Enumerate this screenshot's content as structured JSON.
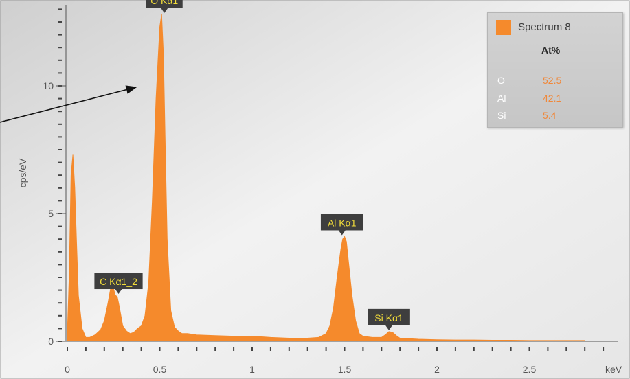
{
  "chart_data": {
    "type": "area",
    "xlabel": "keV",
    "ylabel": "cps/eV",
    "xlim": [
      0,
      3.0
    ],
    "ylim": [
      0,
      13.2
    ],
    "x_ticks": [
      0,
      0.5,
      1,
      1.5,
      2,
      2.5
    ],
    "x_tick_labels": [
      "0",
      "0.5",
      "1",
      "1.5",
      "2",
      "2.5"
    ],
    "y_ticks": [
      0,
      5,
      10
    ],
    "y_tick_labels": [
      "0",
      "5",
      "10"
    ],
    "grid": false,
    "series": [
      {
        "name": "Spectrum 8",
        "color": "#f58a2c",
        "x": [
          0.0,
          0.01,
          0.02,
          0.03,
          0.04,
          0.05,
          0.06,
          0.08,
          0.1,
          0.12,
          0.15,
          0.18,
          0.2,
          0.22,
          0.24,
          0.26,
          0.27,
          0.28,
          0.3,
          0.32,
          0.34,
          0.36,
          0.38,
          0.4,
          0.42,
          0.44,
          0.46,
          0.48,
          0.5,
          0.51,
          0.52,
          0.53,
          0.54,
          0.56,
          0.58,
          0.6,
          0.62,
          0.65,
          0.7,
          0.8,
          0.9,
          1.0,
          1.1,
          1.2,
          1.3,
          1.36,
          1.4,
          1.42,
          1.44,
          1.46,
          1.48,
          1.49,
          1.5,
          1.51,
          1.52,
          1.54,
          1.56,
          1.58,
          1.6,
          1.65,
          1.7,
          1.72,
          1.74,
          1.76,
          1.78,
          1.8,
          1.85,
          1.9,
          2.0,
          2.1,
          2.2,
          2.3,
          2.4,
          2.5,
          2.6,
          2.7,
          2.8
        ],
        "values": [
          0.3,
          2.5,
          6.5,
          7.3,
          6.0,
          3.8,
          1.8,
          0.5,
          0.15,
          0.15,
          0.25,
          0.45,
          0.8,
          1.5,
          2.3,
          1.8,
          1.75,
          1.4,
          0.6,
          0.4,
          0.3,
          0.35,
          0.5,
          0.6,
          1.0,
          2.3,
          5.5,
          9.5,
          12.3,
          12.8,
          11.2,
          7.5,
          4.0,
          1.2,
          0.55,
          0.4,
          0.3,
          0.3,
          0.25,
          0.22,
          0.2,
          0.2,
          0.15,
          0.12,
          0.12,
          0.15,
          0.3,
          0.6,
          1.3,
          2.5,
          3.6,
          4.0,
          4.1,
          3.9,
          3.2,
          1.8,
          0.8,
          0.3,
          0.2,
          0.15,
          0.15,
          0.25,
          0.38,
          0.35,
          0.22,
          0.12,
          0.1,
          0.08,
          0.06,
          0.05,
          0.05,
          0.04,
          0.04,
          0.03,
          0.03,
          0.03,
          0.03
        ]
      }
    ],
    "peak_labels": [
      {
        "text": "O Kα1",
        "x": 0.525,
        "y": 12.8
      },
      {
        "text": "C Kα1_2",
        "x": 0.277,
        "y": 1.8
      },
      {
        "text": "Al Kα1",
        "x": 1.486,
        "y": 4.1
      },
      {
        "text": "Si Kα1",
        "x": 1.74,
        "y": 0.38
      }
    ],
    "legend": {
      "series_name": "Spectrum 8",
      "header": "At%",
      "rows": [
        {
          "element": "O",
          "value": "52.5"
        },
        {
          "element": "Al",
          "value": "42.1"
        },
        {
          "element": "Si",
          "value": "5.4"
        }
      ]
    }
  }
}
